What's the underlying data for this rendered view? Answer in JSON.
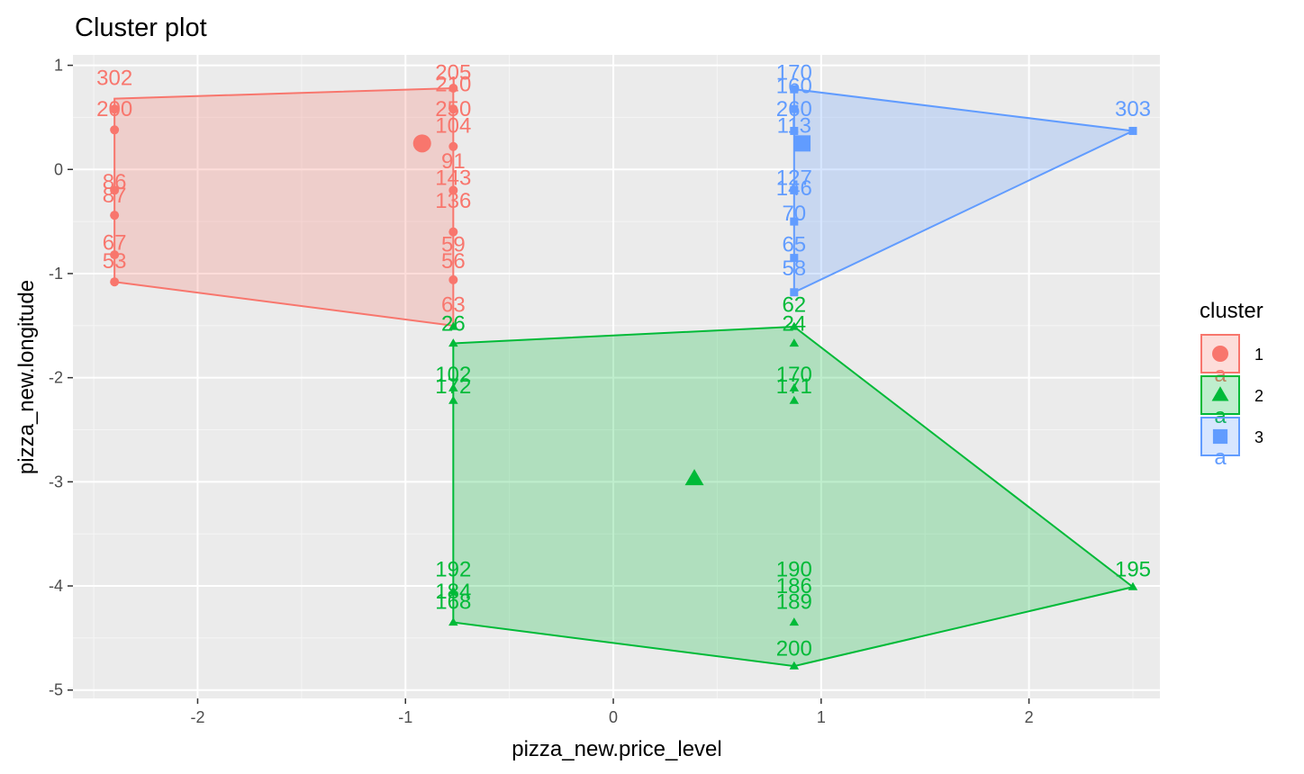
{
  "chart_data": {
    "type": "scatter",
    "title": "Cluster plot",
    "xlabel": "pizza_new.price_level",
    "ylabel": "pizza_new.longitude",
    "xlim": [
      -2.6,
      2.63
    ],
    "ylim": [
      -5.08,
      1.1
    ],
    "x_ticks": [
      -2,
      -1,
      0,
      1,
      2
    ],
    "y_ticks": [
      1,
      0,
      -1,
      -2,
      -3,
      -4,
      -5
    ],
    "grid": true,
    "legend": {
      "title": "cluster",
      "position": "right",
      "key_glyph_text": "a"
    },
    "series": [
      {
        "name": "1",
        "color": "#F8766D",
        "marker": "circle",
        "center": [
          -0.92,
          0.25
        ],
        "hull": [
          [
            -2.4,
            0.68
          ],
          [
            -0.77,
            0.78
          ],
          [
            -0.77,
            -1.5
          ],
          [
            -2.4,
            -1.08
          ]
        ],
        "points": [
          [
            -2.4,
            0.58
          ],
          [
            -2.4,
            0.38
          ],
          [
            -2.4,
            -0.2
          ],
          [
            -2.4,
            -0.44
          ],
          [
            -2.4,
            -0.82
          ],
          [
            -2.4,
            -1.08
          ],
          [
            -0.77,
            0.78
          ],
          [
            -0.77,
            0.58
          ],
          [
            -0.77,
            0.22
          ],
          [
            -0.77,
            -0.2
          ],
          [
            -0.77,
            -0.6
          ],
          [
            -0.77,
            -1.06
          ]
        ],
        "labels": [
          {
            "text": "302",
            "x": -2.4,
            "y": 0.88
          },
          {
            "text": "200",
            "x": -2.4,
            "y": 0.58
          },
          {
            "text": "86",
            "x": -2.4,
            "y": -0.12
          },
          {
            "text": "87",
            "x": -2.4,
            "y": -0.25
          },
          {
            "text": "67",
            "x": -2.4,
            "y": -0.7
          },
          {
            "text": "53",
            "x": -2.4,
            "y": -0.88
          },
          {
            "text": "205",
            "x": -0.77,
            "y": 0.93
          },
          {
            "text": "210",
            "x": -0.77,
            "y": 0.82
          },
          {
            "text": "250",
            "x": -0.77,
            "y": 0.58
          },
          {
            "text": "104",
            "x": -0.77,
            "y": 0.42
          },
          {
            "text": "91",
            "x": -0.77,
            "y": 0.08
          },
          {
            "text": "143",
            "x": -0.77,
            "y": -0.08
          },
          {
            "text": "136",
            "x": -0.77,
            "y": -0.3
          },
          {
            "text": "59",
            "x": -0.77,
            "y": -0.72
          },
          {
            "text": "56",
            "x": -0.77,
            "y": -0.88
          },
          {
            "text": "63",
            "x": -0.77,
            "y": -1.3
          }
        ]
      },
      {
        "name": "2",
        "color": "#00BA38",
        "marker": "triangle",
        "center": [
          0.39,
          -2.97
        ],
        "hull": [
          [
            -0.77,
            -1.67
          ],
          [
            0.87,
            -1.51
          ],
          [
            2.5,
            -4.01
          ],
          [
            0.87,
            -4.77
          ],
          [
            -0.77,
            -4.35
          ]
        ],
        "points": [
          [
            -0.77,
            -1.51
          ],
          [
            -0.77,
            -1.67
          ],
          [
            -0.77,
            -2.1
          ],
          [
            -0.77,
            -2.22
          ],
          [
            -0.77,
            -4.05
          ],
          [
            -0.77,
            -4.35
          ],
          [
            0.87,
            -1.51
          ],
          [
            0.87,
            -1.67
          ],
          [
            0.87,
            -2.1
          ],
          [
            0.87,
            -2.22
          ],
          [
            0.87,
            -4.35
          ],
          [
            0.87,
            -4.77
          ],
          [
            2.5,
            -4.01
          ]
        ],
        "labels": [
          {
            "text": "26",
            "x": -0.77,
            "y": -1.48
          },
          {
            "text": "102",
            "x": -0.77,
            "y": -1.97
          },
          {
            "text": "172",
            "x": -0.77,
            "y": -2.08
          },
          {
            "text": "192",
            "x": -0.77,
            "y": -3.84
          },
          {
            "text": "184",
            "x": -0.77,
            "y": -4.05
          },
          {
            "text": "168",
            "x": -0.77,
            "y": -4.15
          },
          {
            "text": "62",
            "x": 0.87,
            "y": -1.3
          },
          {
            "text": "24",
            "x": 0.87,
            "y": -1.48
          },
          {
            "text": "170",
            "x": 0.87,
            "y": -1.97
          },
          {
            "text": "171",
            "x": 0.87,
            "y": -2.08
          },
          {
            "text": "190",
            "x": 0.87,
            "y": -3.84
          },
          {
            "text": "186",
            "x": 0.87,
            "y": -4.0
          },
          {
            "text": "189",
            "x": 0.87,
            "y": -4.15
          },
          {
            "text": "200",
            "x": 0.87,
            "y": -4.6
          },
          {
            "text": "195",
            "x": 2.5,
            "y": -3.84
          }
        ]
      },
      {
        "name": "3",
        "color": "#619CFF",
        "marker": "square",
        "center": [
          0.91,
          0.25
        ],
        "hull": [
          [
            0.87,
            0.77
          ],
          [
            2.5,
            0.37
          ],
          [
            0.87,
            -1.18
          ]
        ],
        "points": [
          [
            0.87,
            0.77
          ],
          [
            0.87,
            0.58
          ],
          [
            0.87,
            0.37
          ],
          [
            0.87,
            -0.2
          ],
          [
            0.87,
            -0.5
          ],
          [
            0.87,
            -0.85
          ],
          [
            0.87,
            -1.18
          ],
          [
            2.5,
            0.37
          ]
        ],
        "labels": [
          {
            "text": "170",
            "x": 0.87,
            "y": 0.93
          },
          {
            "text": "160",
            "x": 0.87,
            "y": 0.8
          },
          {
            "text": "260",
            "x": 0.87,
            "y": 0.58
          },
          {
            "text": "113",
            "x": 0.87,
            "y": 0.42
          },
          {
            "text": "127",
            "x": 0.87,
            "y": -0.08
          },
          {
            "text": "146",
            "x": 0.87,
            "y": -0.18
          },
          {
            "text": "70",
            "x": 0.87,
            "y": -0.42
          },
          {
            "text": "65",
            "x": 0.87,
            "y": -0.72
          },
          {
            "text": "58",
            "x": 0.87,
            "y": -0.95
          },
          {
            "text": "303",
            "x": 2.5,
            "y": 0.58
          }
        ]
      }
    ]
  }
}
